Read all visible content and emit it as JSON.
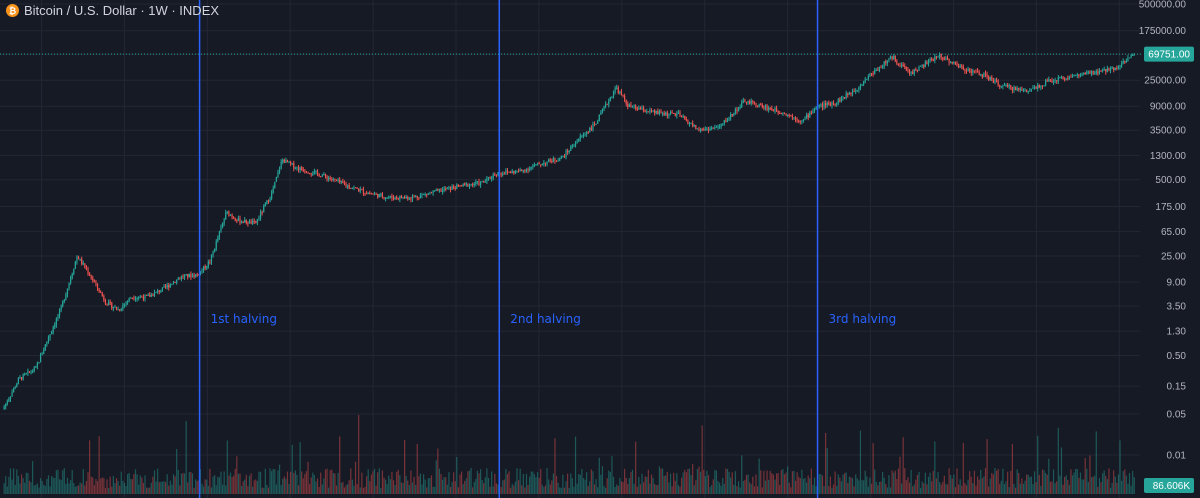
{
  "header": {
    "symbol_icon": "bitcoin-icon",
    "icon_glyph": "₿",
    "title": "Bitcoin / U.S. Dollar · 1W · INDEX"
  },
  "colors": {
    "background": "#161a25",
    "up": "#26a69a",
    "down": "#ef5350",
    "halving_line": "#2962ff",
    "price_line": "#26a69a",
    "grid": "#232734"
  },
  "price_axis": {
    "scale": "log",
    "ticks": [
      "500000.00",
      "175000.00",
      "69751.00",
      "25000.00",
      "9000.00",
      "3500.00",
      "1300.00",
      "500.00",
      "175.00",
      "65.00",
      "25.00",
      "9.00",
      "3.50",
      "1.30",
      "0.50",
      "0.15",
      "0.05",
      "0.01"
    ],
    "current_price_label": "69751.00",
    "volume_label": "86.606K"
  },
  "halvings": [
    {
      "label": "1st halving"
    },
    {
      "label": "2nd halving"
    },
    {
      "label": "3rd halving"
    }
  ],
  "chart_data": {
    "type": "candlestick",
    "title": "Bitcoin / U.S. Dollar · 1W · INDEX",
    "y_scale": "log",
    "y_range": [
      0.01,
      500000
    ],
    "grid": true,
    "price_path": [
      [
        2010.55,
        0.06
      ],
      [
        2010.75,
        0.2
      ],
      [
        2010.95,
        0.3
      ],
      [
        2011.1,
        1.0
      ],
      [
        2011.25,
        3.0
      ],
      [
        2011.45,
        25
      ],
      [
        2011.6,
        12
      ],
      [
        2011.8,
        4
      ],
      [
        2011.95,
        3
      ],
      [
        2012.1,
        5
      ],
      [
        2012.3,
        5
      ],
      [
        2012.5,
        7
      ],
      [
        2012.7,
        11
      ],
      [
        2012.9,
        12
      ],
      [
        2013.05,
        20
      ],
      [
        2013.25,
        140
      ],
      [
        2013.4,
        100
      ],
      [
        2013.6,
        90
      ],
      [
        2013.8,
        300
      ],
      [
        2013.92,
        1100
      ],
      [
        2014.1,
        800
      ],
      [
        2014.4,
        600
      ],
      [
        2014.7,
        400
      ],
      [
        2014.95,
        300
      ],
      [
        2015.2,
        250
      ],
      [
        2015.5,
        250
      ],
      [
        2015.8,
        320
      ],
      [
        2016.1,
        400
      ],
      [
        2016.35,
        450
      ],
      [
        2016.5,
        650
      ],
      [
        2016.8,
        700
      ],
      [
        2017.0,
        900
      ],
      [
        2017.3,
        1200
      ],
      [
        2017.5,
        2500
      ],
      [
        2017.7,
        4500
      ],
      [
        2017.95,
        19000
      ],
      [
        2018.1,
        9000
      ],
      [
        2018.4,
        7000
      ],
      [
        2018.7,
        6500
      ],
      [
        2018.95,
        3500
      ],
      [
        2019.2,
        4000
      ],
      [
        2019.5,
        11000
      ],
      [
        2019.7,
        9000
      ],
      [
        2019.95,
        7200
      ],
      [
        2020.2,
        5000
      ],
      [
        2020.36,
        8800
      ],
      [
        2020.6,
        10500
      ],
      [
        2020.85,
        18000
      ],
      [
        2021.0,
        30000
      ],
      [
        2021.28,
        62000
      ],
      [
        2021.5,
        33000
      ],
      [
        2021.85,
        67000
      ],
      [
        2022.1,
        42000
      ],
      [
        2022.4,
        30000
      ],
      [
        2022.6,
        20000
      ],
      [
        2022.9,
        16500
      ],
      [
        2023.2,
        25000
      ],
      [
        2023.5,
        30000
      ],
      [
        2023.8,
        35000
      ],
      [
        2024.0,
        43000
      ],
      [
        2024.2,
        69751
      ]
    ],
    "halving_dates": [
      "2012-11-28",
      "2016-07-09",
      "2020-05-11"
    ],
    "last_price": 69751.0,
    "last_volume": "86.606K"
  }
}
